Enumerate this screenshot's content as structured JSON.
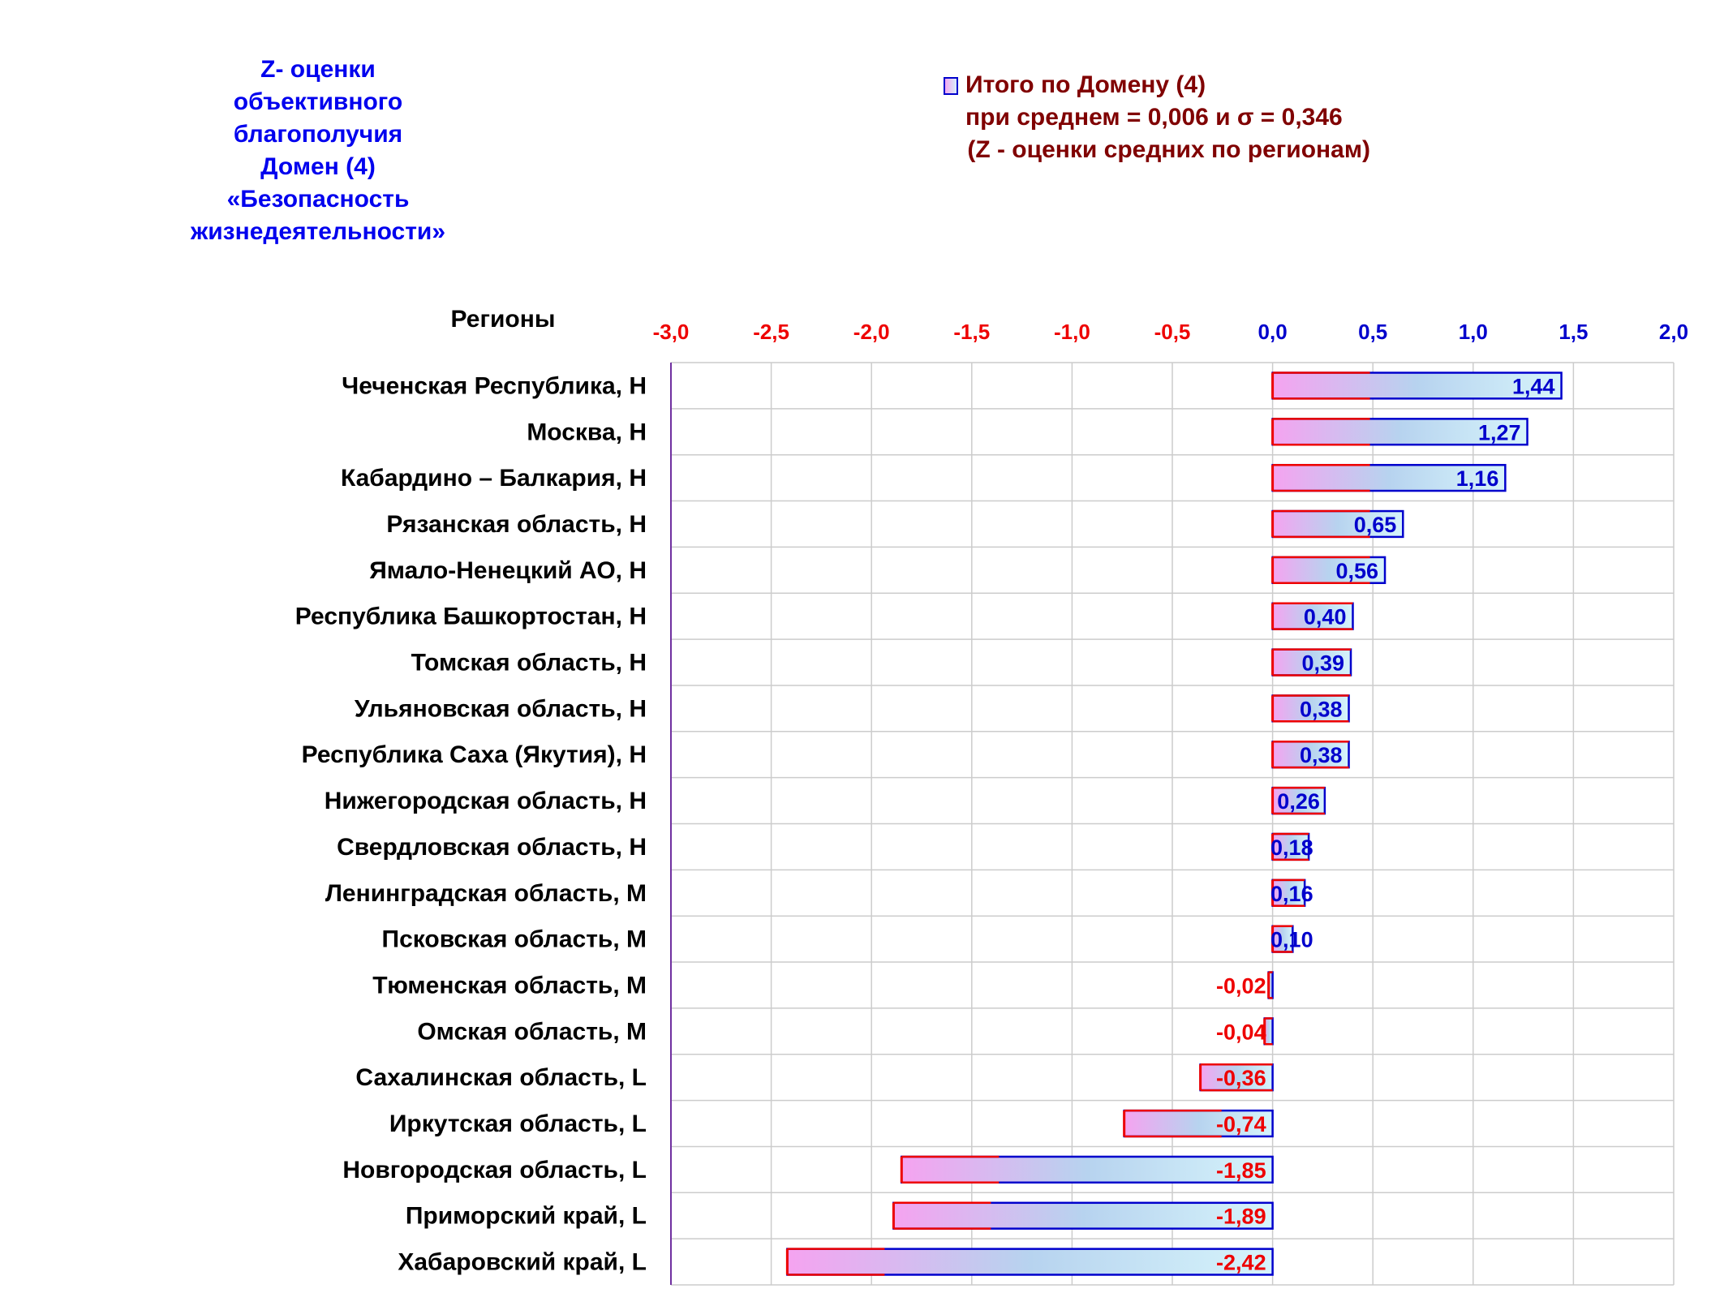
{
  "chart_data": {
    "type": "bar",
    "orientation": "horizontal",
    "title_lines": [
      "Z- оценки",
      "объективного",
      "благополучия",
      "Домен (4)",
      "«Безопасность",
      "жизнедеятельности»"
    ],
    "legend_lines": [
      "Итого по Домену (4)",
      "при среднем = 0,006  и σ = 0,346",
      " (Z - оценки средних по регионам)"
    ],
    "legend_position": "top-right",
    "category_header": "Регионы",
    "xlim": [
      -3.0,
      2.0
    ],
    "ticks": [
      "-3,0",
      "-2,5",
      "-2,0",
      "-1,5",
      "-1,0",
      "-0,5",
      "0,0",
      "0,5",
      "1,0",
      "1,5",
      "2,0"
    ],
    "grid": true,
    "categories": [
      "Чеченская Республика,  H",
      "Москва,  H",
      "Кабардино – Балкария,  H",
      "Рязанская область,  H",
      "Ямало-Ненецкий АО,  H",
      "Республика Башкортостан,  H",
      "Томская область,  H",
      "Ульяновская область,  H",
      "Республика Саха (Якутия),  H",
      "Нижегородская область,  H",
      "Свердловская область,  H",
      "Ленинградская область,  M",
      "Псковская область,  M",
      "Тюменская область,  M",
      "Омская область,  M",
      "Сахалинская область,  L",
      "Иркутская область,  L",
      "Новгородская область,  L",
      "Приморский край,  L",
      "Хабаровский край,  L"
    ],
    "values": [
      1.44,
      1.27,
      1.16,
      0.65,
      0.56,
      0.4,
      0.39,
      0.38,
      0.38,
      0.26,
      0.18,
      0.16,
      0.1,
      -0.02,
      -0.04,
      -0.36,
      -0.74,
      -1.85,
      -1.89,
      -2.42
    ],
    "labels": [
      "1,44",
      "1,27",
      "1,16",
      "0,65",
      "0,56",
      "0,40",
      "0,39",
      "0,38",
      "0,38",
      "0,26",
      "0,18",
      "0,16",
      "0,10",
      "-0,02",
      "-0,04",
      "-0,36",
      "-0,74",
      "-1,85",
      "-1,89",
      "-2,42"
    ],
    "colors": {
      "title": "#0000ee",
      "legend": "#800000",
      "positive": "#0000cc",
      "negative": "#ee0000",
      "bar_left": "#f5a3f0",
      "bar_right": "#d6f4fb",
      "grid": "#cccccc",
      "plot_left_border": "#7030a0"
    }
  }
}
